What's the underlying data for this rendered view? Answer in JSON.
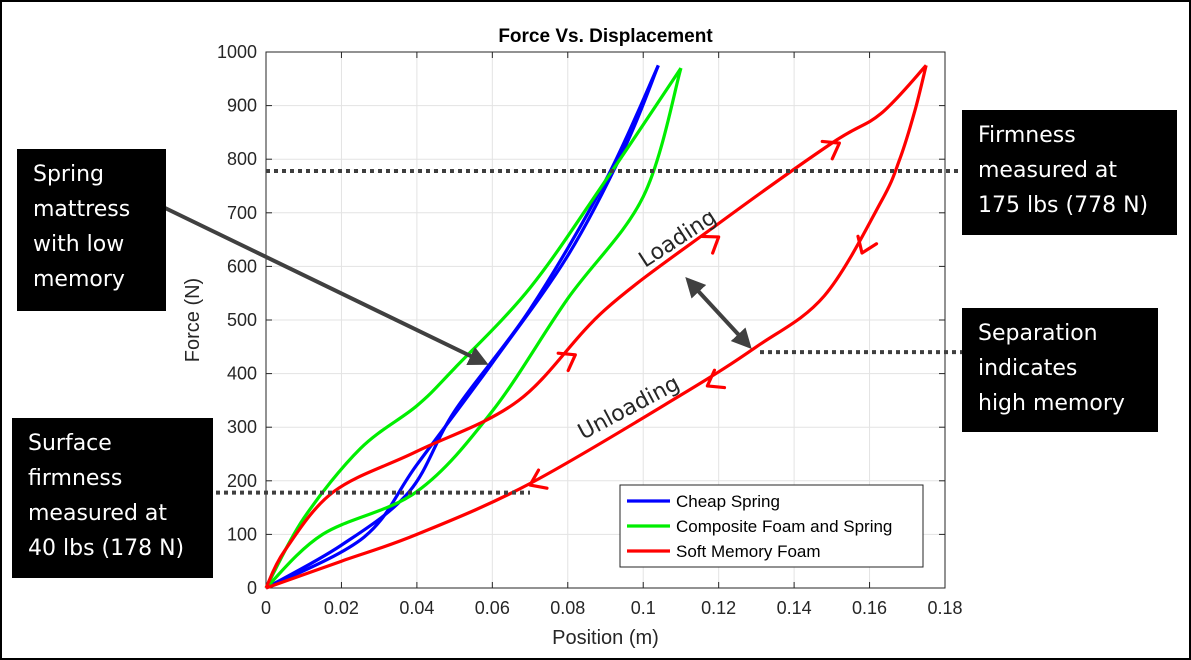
{
  "chart_data": {
    "type": "line",
    "title": "Force Vs. Displacement",
    "xlabel": "Position (m)",
    "ylabel": "Force (N)",
    "xlim": [
      0,
      0.18
    ],
    "ylim": [
      0,
      1000
    ],
    "xticks": [
      "0",
      "0.02",
      "0.04",
      "0.06",
      "0.08",
      "0.1",
      "0.12",
      "0.14",
      "0.16",
      "0.18"
    ],
    "yticks": [
      "0",
      "100",
      "200",
      "300",
      "400",
      "500",
      "600",
      "700",
      "800",
      "900",
      "1000"
    ],
    "grid": true,
    "legend_position": "bottom-right",
    "series": [
      {
        "name": "Cheap Spring",
        "color": "#0000ff",
        "loading": [
          [
            0,
            0
          ],
          [
            0.026,
            95
          ],
          [
            0.04,
            230
          ],
          [
            0.06,
            420
          ],
          [
            0.08,
            620
          ],
          [
            0.095,
            820
          ],
          [
            0.104,
            975
          ]
        ],
        "unloading": [
          [
            0.104,
            975
          ],
          [
            0.09,
            760
          ],
          [
            0.07,
            520
          ],
          [
            0.05,
            330
          ],
          [
            0.038,
            180
          ],
          [
            0.02,
            80
          ],
          [
            0,
            0
          ]
        ]
      },
      {
        "name": "Composite Foam and Spring",
        "color": "#00ee00",
        "loading": [
          [
            0,
            0
          ],
          [
            0.015,
            100
          ],
          [
            0.04,
            180
          ],
          [
            0.06,
            330
          ],
          [
            0.08,
            540
          ],
          [
            0.1,
            730
          ],
          [
            0.11,
            970
          ]
        ],
        "unloading": [
          [
            0.11,
            970
          ],
          [
            0.09,
            760
          ],
          [
            0.07,
            560
          ],
          [
            0.05,
            410
          ],
          [
            0.04,
            340
          ],
          [
            0.025,
            260
          ],
          [
            0.01,
            130
          ],
          [
            0,
            0
          ]
        ]
      },
      {
        "name": "Soft Memory Foam",
        "color": "#ff0000",
        "loading": [
          [
            0,
            0
          ],
          [
            0.005,
            70
          ],
          [
            0.018,
            180
          ],
          [
            0.04,
            255
          ],
          [
            0.067,
            350
          ],
          [
            0.09,
            520
          ],
          [
            0.12,
            680
          ],
          [
            0.15,
            830
          ],
          [
            0.163,
            885
          ],
          [
            0.175,
            975
          ]
        ],
        "unloading": [
          [
            0.175,
            975
          ],
          [
            0.172,
            890
          ],
          [
            0.168,
            800
          ],
          [
            0.163,
            720
          ],
          [
            0.148,
            545
          ],
          [
            0.13,
            450
          ],
          [
            0.11,
            360
          ],
          [
            0.07,
            195
          ],
          [
            0.04,
            100
          ],
          [
            0.02,
            50
          ],
          [
            0,
            0
          ]
        ]
      }
    ],
    "annotations": {
      "loading_label": "Loading",
      "unloading_label": "Unloading"
    },
    "reference_lines": [
      {
        "y": 778,
        "style": "dotted"
      },
      {
        "y": 440,
        "style": "dotted"
      },
      {
        "y": 178,
        "style": "dotted"
      }
    ]
  },
  "callouts": {
    "spring": [
      "Spring",
      "mattress",
      "with low",
      "memory"
    ],
    "firmness": [
      "Firmness",
      "measured at",
      "175 lbs (778 N)"
    ],
    "separation": [
      "Separation",
      "indicates",
      "high memory"
    ],
    "surface": [
      "Surface",
      "firmness",
      "measured at",
      "40 lbs (178 N)"
    ]
  }
}
